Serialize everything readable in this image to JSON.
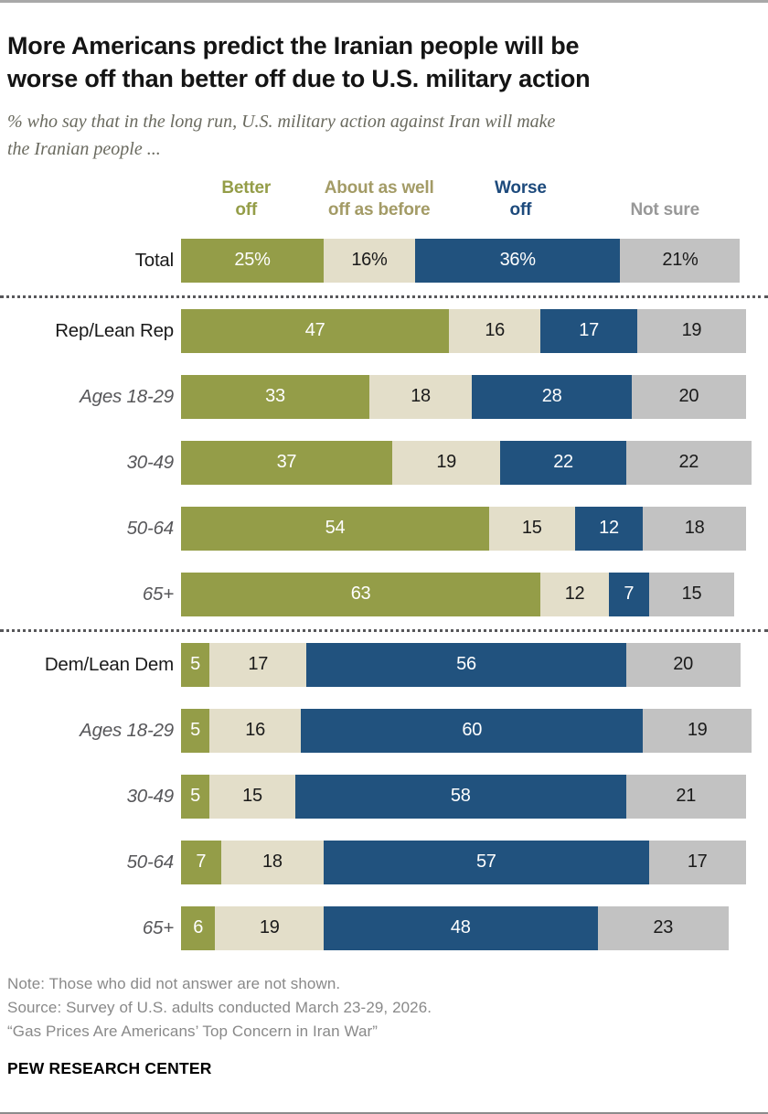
{
  "header": {
    "title": "More Americans predict the Iranian people will be\nworse off than better off due to U.S. military action",
    "subtitle": "% who say that in the long run, U.S. military action against Iran will make\nthe Iranian people ..."
  },
  "chart_data": {
    "type": "bar",
    "stacked": true,
    "orientation": "horizontal",
    "scale_max": 100,
    "grid": false,
    "legend_position": "top",
    "series_keys": [
      "better-off",
      "about-as-well-off",
      "worse-off",
      "not-sure"
    ],
    "colors": [
      "#949d48",
      "#e3dec9",
      "#21527e",
      "#c2c2c2"
    ],
    "value_text_colors": [
      "#ffffff",
      "#1a1a1a",
      "#ffffff",
      "#1a1a1a"
    ],
    "legend": [
      {
        "text": "Better\noff",
        "color": "#949d48",
        "x_pct": 11.5
      },
      {
        "text": "About as well\noff as before",
        "color": "#a39b66",
        "x_pct": 35.0
      },
      {
        "text": "Worse\noff",
        "color": "#1d4a7c",
        "x_pct": 60.0
      },
      {
        "text": "Not sure",
        "color": "#989898",
        "x_pct": 85.5
      }
    ],
    "categories": [
      "Total",
      "Rep/Lean Rep",
      "Ages 18-29",
      "30-49",
      "50-64",
      "65+",
      "Dem/Lean Dem",
      "Ages 18-29",
      "30-49",
      "50-64",
      "65+"
    ],
    "rows": [
      {
        "label": "Total",
        "italic": false,
        "divider_before": false,
        "values": [
          25,
          16,
          36,
          21
        ],
        "display": [
          "25%",
          "16%",
          "36%",
          "21%"
        ]
      },
      {
        "label": "Rep/Lean Rep",
        "italic": false,
        "divider_before": true,
        "values": [
          47,
          16,
          17,
          19
        ],
        "display": [
          "47",
          "16",
          "17",
          "19"
        ]
      },
      {
        "label": "Ages 18-29",
        "italic": true,
        "divider_before": false,
        "values": [
          33,
          18,
          28,
          20
        ],
        "display": [
          "33",
          "18",
          "28",
          "20"
        ]
      },
      {
        "label": "30-49",
        "italic": true,
        "divider_before": false,
        "values": [
          37,
          19,
          22,
          22
        ],
        "display": [
          "37",
          "19",
          "22",
          "22"
        ]
      },
      {
        "label": "50-64",
        "italic": true,
        "divider_before": false,
        "values": [
          54,
          15,
          12,
          18
        ],
        "display": [
          "54",
          "15",
          "12",
          "18"
        ]
      },
      {
        "label": "65+",
        "italic": true,
        "divider_before": false,
        "values": [
          63,
          12,
          7,
          15
        ],
        "display": [
          "63",
          "12",
          "7",
          "15"
        ]
      },
      {
        "label": "Dem/Lean Dem",
        "italic": false,
        "divider_before": true,
        "values": [
          5,
          17,
          56,
          20
        ],
        "display": [
          "5",
          "17",
          "56",
          "20"
        ]
      },
      {
        "label": "Ages 18-29",
        "italic": true,
        "divider_before": false,
        "values": [
          5,
          16,
          60,
          19
        ],
        "display": [
          "5",
          "16",
          "60",
          "19"
        ]
      },
      {
        "label": "30-49",
        "italic": true,
        "divider_before": false,
        "values": [
          5,
          15,
          58,
          21
        ],
        "display": [
          "5",
          "15",
          "58",
          "21"
        ]
      },
      {
        "label": "50-64",
        "italic": true,
        "divider_before": false,
        "values": [
          7,
          18,
          57,
          17
        ],
        "display": [
          "7",
          "18",
          "57",
          "17"
        ]
      },
      {
        "label": "65+",
        "italic": true,
        "divider_before": false,
        "values": [
          6,
          19,
          48,
          23
        ],
        "display": [
          "6",
          "19",
          "48",
          "23"
        ]
      }
    ]
  },
  "footer": {
    "note": "Note: Those who did not answer are not shown.",
    "source": "Source: Survey of U.S. adults conducted March 23-29, 2026.",
    "quote": "“Gas Prices Are Americans’ Top Concern in Iran War”",
    "brand": "PEW RESEARCH CENTER"
  }
}
